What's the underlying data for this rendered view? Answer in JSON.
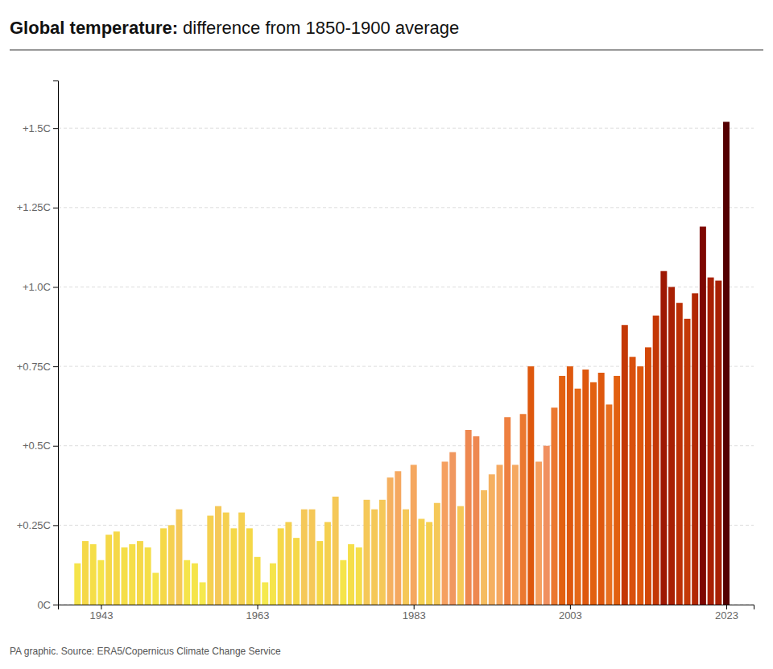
{
  "chart_data": {
    "type": "bar",
    "title": "Global temperature:",
    "subtitle": "difference from 1850-1900 average",
    "annotations": [
      "PA graphic. Source: ERA5/Copernicus Climate Change Service"
    ],
    "x": [
      1940,
      1941,
      1942,
      1943,
      1944,
      1945,
      1946,
      1947,
      1948,
      1949,
      1950,
      1951,
      1952,
      1953,
      1954,
      1955,
      1956,
      1957,
      1958,
      1959,
      1960,
      1961,
      1962,
      1963,
      1964,
      1965,
      1966,
      1967,
      1968,
      1969,
      1970,
      1971,
      1972,
      1973,
      1974,
      1975,
      1976,
      1977,
      1978,
      1979,
      1980,
      1981,
      1982,
      1983,
      1984,
      1985,
      1986,
      1987,
      1988,
      1989,
      1990,
      1991,
      1992,
      1993,
      1994,
      1995,
      1996,
      1997,
      1998,
      1999,
      2000,
      2001,
      2002,
      2003,
      2004,
      2005,
      2006,
      2007,
      2008,
      2009,
      2010,
      2011,
      2012,
      2013,
      2014,
      2015,
      2016,
      2017,
      2018,
      2019,
      2020,
      2021,
      2022,
      2023
    ],
    "values": [
      0.13,
      0.2,
      0.19,
      0.14,
      0.22,
      0.23,
      0.18,
      0.19,
      0.2,
      0.18,
      0.1,
      0.24,
      0.25,
      0.3,
      0.14,
      0.13,
      0.07,
      0.28,
      0.31,
      0.29,
      0.24,
      0.29,
      0.24,
      0.15,
      0.07,
      0.13,
      0.24,
      0.26,
      0.21,
      0.3,
      0.3,
      0.2,
      0.26,
      0.34,
      0.14,
      0.19,
      0.18,
      0.33,
      0.3,
      0.33,
      0.4,
      0.42,
      0.3,
      0.44,
      0.27,
      0.26,
      0.32,
      0.45,
      0.48,
      0.31,
      0.55,
      0.53,
      0.36,
      0.41,
      0.44,
      0.59,
      0.44,
      0.6,
      0.75,
      0.45,
      0.5,
      0.62,
      0.72,
      0.75,
      0.68,
      0.74,
      0.7,
      0.73,
      0.63,
      0.72,
      0.88,
      0.78,
      0.75,
      0.81,
      0.91,
      1.05,
      1.0,
      0.95,
      0.9,
      0.98,
      1.19,
      1.03,
      1.02,
      1.52
    ],
    "colors": [
      "#f5e44a",
      "#f5d848",
      "#f5de48",
      "#f5e44a",
      "#f5d848",
      "#f5d848",
      "#f5de48",
      "#f5de48",
      "#f5d848",
      "#f5de48",
      "#f5e44a",
      "#f5d848",
      "#f5d050",
      "#f5c858",
      "#f5e44a",
      "#f5e44a",
      "#f5e94e",
      "#f5d050",
      "#f5c858",
      "#f5d050",
      "#f5d848",
      "#f5d050",
      "#f5d848",
      "#f5de48",
      "#f5e94e",
      "#f5e44a",
      "#f5d848",
      "#f5d050",
      "#f5d848",
      "#f5c858",
      "#f5c858",
      "#f5d848",
      "#f5d050",
      "#f5c858",
      "#f5e44a",
      "#f5de48",
      "#f5de48",
      "#f5c858",
      "#f5c858",
      "#f5c858",
      "#f5b060",
      "#f5a860",
      "#f5c858",
      "#f5a860",
      "#f5d050",
      "#f5d050",
      "#f5c858",
      "#f5a060",
      "#f09860",
      "#f5c858",
      "#ee8850",
      "#ee8850",
      "#f5bc60",
      "#f5b060",
      "#f5a860",
      "#ee8040",
      "#f5a860",
      "#eb7830",
      "#de580e",
      "#f5a060",
      "#f09060",
      "#eb7830",
      "#e26010",
      "#de580e",
      "#e56818",
      "#de580e",
      "#e26010",
      "#de580e",
      "#e87020",
      "#e26010",
      "#c43806",
      "#d9500c",
      "#de580e",
      "#d34808",
      "#c43806",
      "#9e1803",
      "#a82004",
      "#bc3005",
      "#c43806",
      "#b22804",
      "#7e0702",
      "#a82004",
      "#a82004",
      "#540001"
    ],
    "ylim": [
      0,
      1.65
    ],
    "yticks": [
      {
        "value": 0,
        "label": "0C"
      },
      {
        "value": 0.25,
        "label": "+0.25C"
      },
      {
        "value": 0.5,
        "label": "+0.5C"
      },
      {
        "value": 0.75,
        "label": "+0.75C"
      },
      {
        "value": 1.0,
        "label": "+1.0C"
      },
      {
        "value": 1.25,
        "label": "+1.25C"
      },
      {
        "value": 1.5,
        "label": "+1.5C"
      }
    ],
    "xlim": [
      1937.5,
      2026.5
    ],
    "xticks": [
      1943,
      1963,
      1983,
      2003,
      2023
    ],
    "grid": true
  }
}
